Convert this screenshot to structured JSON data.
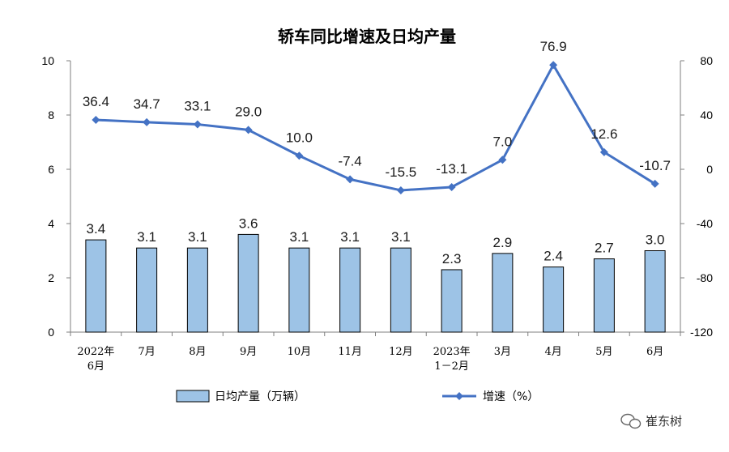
{
  "chart_data": {
    "type": "bar+line",
    "title": "轿车同比增速及日均产量",
    "categories": [
      "2022年\n6月",
      "7月",
      "8月",
      "9月",
      "10月",
      "11月",
      "12月",
      "2023年\n1－2月",
      "3月",
      "4月",
      "5月",
      "6月"
    ],
    "series": [
      {
        "name": "日均产量（万辆）",
        "type": "bar",
        "axis": "left",
        "color": "#9dc3e6",
        "values": [
          3.4,
          3.1,
          3.1,
          3.6,
          3.1,
          3.1,
          3.1,
          2.3,
          2.9,
          2.4,
          2.7,
          3.0
        ],
        "labels": [
          "3.4",
          "3.1",
          "3.1",
          "3.6",
          "3.1",
          "3.1",
          "3.1",
          "2.3",
          "2.9",
          "2.4",
          "2.7",
          "3.0"
        ]
      },
      {
        "name": "增速（%）",
        "type": "line",
        "axis": "right",
        "color": "#4472c4",
        "values": [
          36.4,
          34.7,
          33.1,
          29.0,
          10.0,
          -7.4,
          -15.5,
          -13.1,
          7.0,
          76.9,
          12.6,
          -10.7
        ],
        "labels": [
          "36.4",
          "34.7",
          "33.1",
          "29.0",
          "10.0",
          "-7.4",
          "-15.5",
          "-13.1",
          "7.0",
          "76.9",
          "12.6",
          "-10.7"
        ]
      }
    ],
    "y_left": {
      "range": [
        0,
        10
      ],
      "ticks": [
        "0",
        "2",
        "4",
        "6",
        "8",
        "10"
      ]
    },
    "y_right": {
      "range": [
        -120,
        80
      ],
      "ticks": [
        "-120",
        "-80",
        "-40",
        "0",
        "40",
        "80"
      ]
    },
    "grid": false,
    "legend_position": "bottom"
  },
  "watermark": "崔东树"
}
